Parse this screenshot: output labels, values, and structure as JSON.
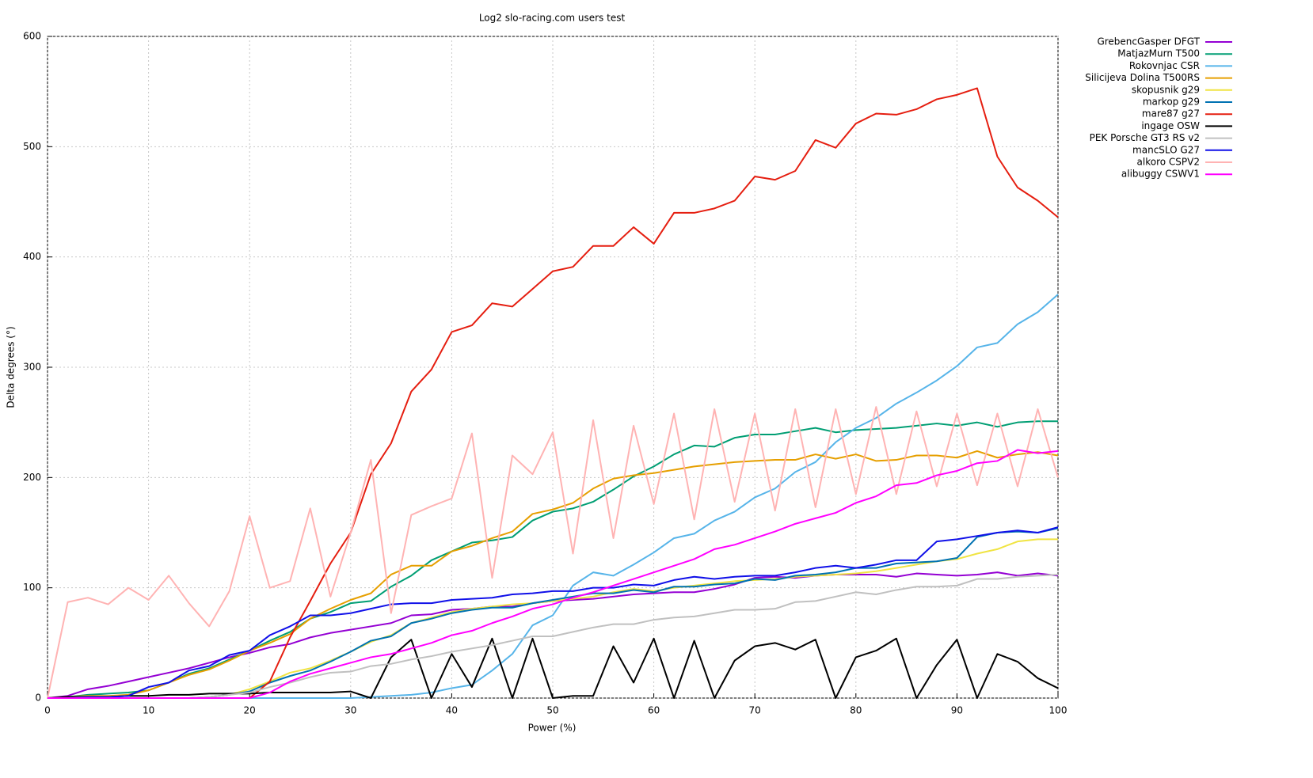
{
  "chart_data": {
    "type": "line",
    "title": "Log2 slo-racing.com users test",
    "x_label": "Power (%)",
    "y_label": "Delta degrees (°)",
    "x": [
      0,
      2,
      4,
      6,
      8,
      10,
      12,
      14,
      16,
      18,
      20,
      22,
      24,
      26,
      28,
      30,
      32,
      34,
      36,
      38,
      40,
      42,
      44,
      46,
      48,
      50,
      52,
      54,
      56,
      58,
      60,
      62,
      64,
      66,
      68,
      70,
      72,
      74,
      76,
      78,
      80,
      82,
      84,
      86,
      88,
      90,
      92,
      94,
      96,
      98,
      100
    ],
    "xlim": [
      0,
      100
    ],
    "xticks": [
      0,
      10,
      20,
      30,
      40,
      50,
      60,
      70,
      80,
      90,
      100
    ],
    "ylim": [
      0,
      600
    ],
    "yticks": [
      0,
      100,
      200,
      300,
      400,
      500,
      600
    ],
    "grid": true,
    "legend": "right",
    "series": [
      {
        "name": "GrebencGasper DFGT",
        "color": "#9400d3",
        "values": [
          0,
          2,
          8,
          11,
          15,
          19,
          23,
          27,
          32,
          37,
          41,
          46,
          49,
          55,
          59,
          62,
          65,
          68,
          75,
          76,
          80,
          81,
          83,
          83,
          86,
          88,
          89,
          90,
          92,
          94,
          95,
          96,
          96,
          99,
          103,
          109,
          110,
          109,
          111,
          112,
          112,
          112,
          110,
          113,
          112,
          111,
          112,
          114,
          111,
          113,
          111
        ]
      },
      {
        "name": "MatjazMurn T500",
        "color": "#009e73",
        "values": [
          0,
          1,
          3,
          4,
          5,
          7,
          14,
          22,
          27,
          35,
          43,
          52,
          60,
          72,
          78,
          86,
          88,
          101,
          111,
          125,
          133,
          141,
          143,
          146,
          161,
          169,
          172,
          178,
          189,
          201,
          210,
          221,
          229,
          228,
          236,
          239,
          239,
          242,
          245,
          241,
          243,
          244,
          245,
          247,
          249,
          247,
          250,
          246,
          250,
          251,
          251
        ]
      },
      {
        "name": "Rokovnjac CSR",
        "color": "#56b4e9",
        "values": [
          0,
          0,
          0,
          0,
          0,
          0,
          0,
          0,
          0,
          0,
          0,
          0,
          0,
          0,
          0,
          0,
          1,
          2,
          3,
          5,
          9,
          12,
          25,
          40,
          66,
          75,
          102,
          114,
          111,
          121,
          132,
          145,
          149,
          161,
          169,
          182,
          190,
          205,
          214,
          232,
          245,
          254,
          267,
          277,
          288,
          301,
          318,
          322,
          339,
          350,
          366
        ]
      },
      {
        "name": "Silicijeva Dolina T500RS",
        "color": "#e69f00",
        "values": [
          0,
          1,
          2,
          2,
          3,
          7,
          14,
          21,
          26,
          34,
          43,
          50,
          58,
          72,
          81,
          89,
          95,
          112,
          120,
          120,
          133,
          138,
          145,
          151,
          167,
          171,
          177,
          190,
          199,
          202,
          204,
          207,
          210,
          212,
          214,
          215,
          216,
          216,
          221,
          217,
          221,
          215,
          216,
          220,
          220,
          218,
          224,
          218,
          221,
          223,
          220
        ]
      },
      {
        "name": "skopusnik g29",
        "color": "#f0e442",
        "values": [
          0,
          0,
          0,
          0,
          0,
          0,
          0,
          0,
          1,
          3,
          8,
          15,
          23,
          27,
          34,
          42,
          51,
          57,
          68,
          73,
          78,
          81,
          83,
          85,
          86,
          88,
          90,
          92,
          96,
          99,
          97,
          100,
          102,
          104,
          106,
          107,
          108,
          110,
          111,
          112,
          113,
          115,
          118,
          121,
          124,
          126,
          131,
          135,
          142,
          144,
          144
        ]
      },
      {
        "name": "markop g29",
        "color": "#0072b2",
        "values": [
          0,
          0,
          0,
          0,
          0,
          0,
          0,
          0,
          1,
          3,
          6,
          14,
          20,
          25,
          33,
          42,
          52,
          56,
          68,
          72,
          77,
          80,
          82,
          82,
          86,
          89,
          92,
          95,
          95,
          98,
          96,
          101,
          101,
          103,
          104,
          108,
          107,
          111,
          112,
          114,
          118,
          118,
          122,
          123,
          124,
          127,
          146,
          150,
          151,
          150,
          154
        ]
      },
      {
        "name": "mare87 g27",
        "color": "#e51e10",
        "values": [
          0,
          0,
          0,
          0,
          0,
          0,
          0,
          0,
          0,
          0,
          0,
          15,
          55,
          88,
          122,
          150,
          203,
          231,
          278,
          298,
          332,
          338,
          358,
          355,
          371,
          387,
          391,
          410,
          410,
          427,
          412,
          440,
          440,
          444,
          451,
          473,
          470,
          478,
          506,
          499,
          521,
          530,
          529,
          534,
          543,
          547,
          553,
          491,
          463,
          451,
          436
        ]
      },
      {
        "name": "ingage OSW",
        "color": "#000000",
        "values": [
          0,
          1,
          1,
          1,
          2,
          2,
          3,
          3,
          4,
          4,
          4,
          5,
          5,
          5,
          5,
          6,
          0,
          37,
          53,
          0,
          40,
          10,
          54,
          0,
          54,
          0,
          2,
          2,
          47,
          14,
          54,
          0,
          52,
          0,
          34,
          47,
          50,
          44,
          53,
          0,
          37,
          43,
          54,
          0,
          30,
          53,
          0,
          40,
          33,
          18,
          9
        ]
      },
      {
        "name": "PEK Porsche GT3 RS v2",
        "color": "#c0c0c0",
        "values": [
          0,
          0,
          0,
          0,
          0,
          0,
          0,
          0,
          1,
          3,
          5,
          10,
          14,
          19,
          23,
          24,
          29,
          31,
          35,
          38,
          42,
          45,
          48,
          52,
          56,
          56,
          60,
          64,
          67,
          67,
          71,
          73,
          74,
          77,
          80,
          80,
          81,
          87,
          88,
          92,
          96,
          94,
          98,
          101,
          101,
          102,
          108,
          108,
          110,
          111,
          112
        ]
      },
      {
        "name": "mancSLO G27",
        "color": "#1010e8",
        "values": [
          0,
          0,
          1,
          1,
          2,
          10,
          14,
          25,
          29,
          39,
          43,
          57,
          65,
          75,
          75,
          77,
          81,
          85,
          86,
          86,
          89,
          90,
          91,
          94,
          95,
          97,
          97,
          100,
          100,
          103,
          102,
          107,
          110,
          108,
          110,
          111,
          111,
          114,
          118,
          120,
          118,
          121,
          125,
          125,
          142,
          144,
          147,
          150,
          152,
          150,
          155
        ]
      },
      {
        "name": "alkoro CSPV2",
        "color": "#ffb3b3",
        "values": [
          0,
          87,
          91,
          85,
          100,
          89,
          111,
          86,
          65,
          97,
          165,
          100,
          106,
          172,
          92,
          150,
          216,
          77,
          166,
          174,
          181,
          240,
          109,
          220,
          203,
          241,
          131,
          252,
          145,
          247,
          176,
          258,
          162,
          262,
          178,
          258,
          170,
          262,
          173,
          262,
          185,
          264,
          185,
          260,
          192,
          258,
          193,
          258,
          192,
          262,
          200
        ]
      },
      {
        "name": "alibuggy CSWV1",
        "color": "#ff00ff",
        "values": [
          0,
          0,
          0,
          0,
          0,
          0,
          0,
          0,
          0,
          0,
          0,
          5,
          15,
          22,
          27,
          32,
          37,
          40,
          45,
          50,
          57,
          61,
          68,
          74,
          81,
          85,
          91,
          96,
          102,
          108,
          114,
          120,
          126,
          135,
          139,
          145,
          151,
          158,
          163,
          168,
          177,
          183,
          193,
          195,
          202,
          206,
          213,
          215,
          225,
          222,
          224
        ]
      }
    ]
  }
}
